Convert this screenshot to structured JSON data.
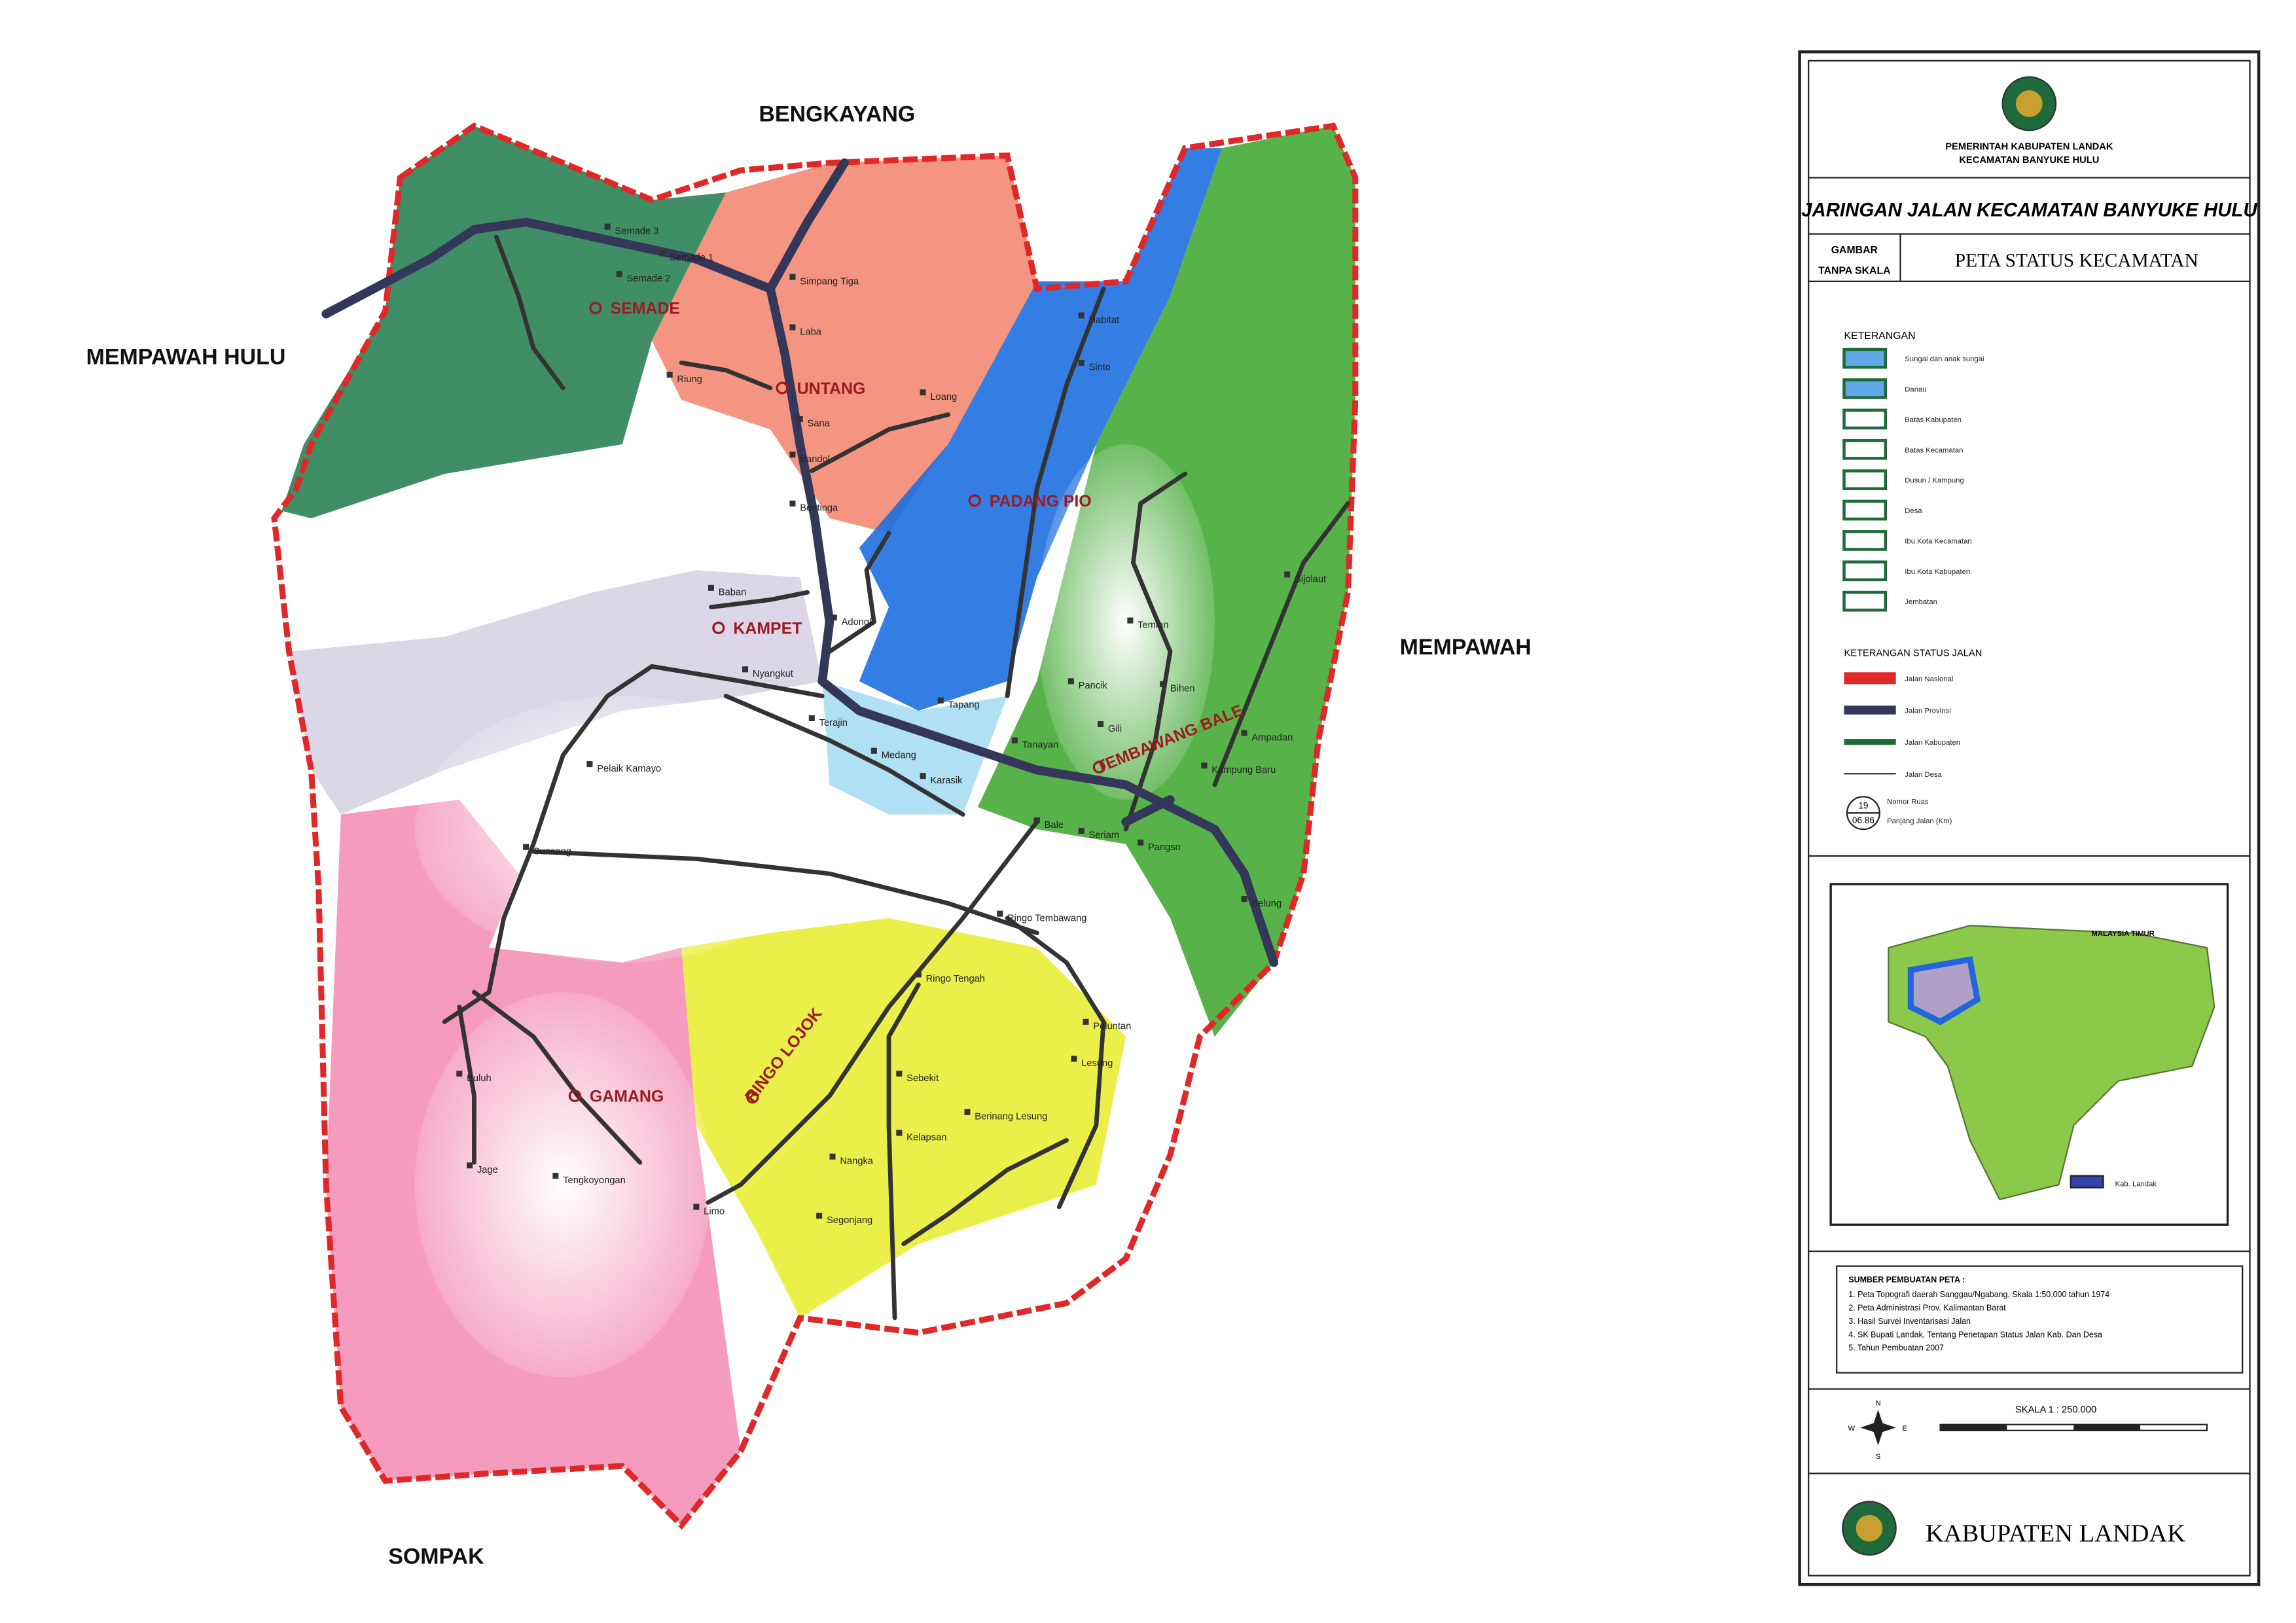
{
  "neighbors": {
    "north": "BENGKAYANG",
    "west": "MEMPAWAH HULU",
    "east": "MEMPAWAH",
    "south": "SOMPAK"
  },
  "desa": [
    "SEMADE",
    "UNTANG",
    "PADANG PIO",
    "KAMPET",
    "TEMBAWANG BALE",
    "RINGO LOJOK",
    "GAMANG"
  ],
  "villages": [
    "Semade 3",
    "Semade 2",
    "Semade 1",
    "Simpang Tiga",
    "Laba",
    "Riung",
    "Loang",
    "Sana",
    "Bandol",
    "Bentinga",
    "Habitat",
    "Sinto",
    "Baban",
    "Adongk",
    "Nyangkut",
    "Terajin",
    "Medang",
    "Tapang",
    "Karasik",
    "Tanayan",
    "Pancik",
    "Temian",
    "Bihen",
    "Gili",
    "Ampadan",
    "Kampung Baru",
    "Sijolaut",
    "Bale",
    "Seriam",
    "Pangso",
    "Belung",
    "Pelaik Kamayo",
    "Sunsang",
    "Ringo Tembawang",
    "Ringo Tengah",
    "Peluntan",
    "Sebekit",
    "Lesung",
    "Berinang Lesung",
    "Kelapsan",
    "Nangka",
    "Segonjang",
    "Limo",
    "Buluh",
    "Jage",
    "Tengkoyongan"
  ],
  "panel": {
    "government": [
      "PEMERINTAH KABUPATEN LANDAK",
      "KECAMATAN BANYUKE HULU"
    ],
    "title": "JARINGAN JALAN KECAMATAN BANYUKE HULU",
    "gambar": "GAMBAR",
    "skala": "TANPA SKALA",
    "map_title": "PETA STATUS KECAMATAN",
    "legend_title": "KETERANGAN",
    "legend": [
      "Sungai dan anak sungai",
      "Danau",
      "Batas Kabupaten",
      "Batas Kecamatan",
      "Dusun / Kampung",
      "Desa",
      "Ibu Kota Kecamatan",
      "Ibu Kota Kabupaten",
      "Jembatan"
    ],
    "road_legend_title": "KETERANGAN STATUS JALAN",
    "roads": [
      "Jalan Nasional",
      "Jalan Provinsi",
      "Jalan Kabupaten",
      "Jalan Desa"
    ],
    "ruas": {
      "number": "19",
      "length": "06.86",
      "labels": [
        "Nomor Ruas",
        "Panjang Jalan (Km)"
      ]
    },
    "inset": {
      "title": "MALAYSIA TIMUR",
      "legend": "Kab. Landak"
    },
    "sources_title": "SUMBER PEMBUATAN PETA :",
    "sources": [
      "1. Peta Topografi daerah Sanggau/Ngabang, Skala 1:50.000 tahun 1974",
      "2. Peta Administrasi Prov. Kalimantan Barat",
      "3. Hasil Survei Inventarisasi Jalan",
      "4. SK Bupati Landak, Tentang Penetapan Status Jalan Kab. Dan Desa",
      "5. Tahun Pembuatan 2007"
    ],
    "scale": "SKALA 1 : 250.000",
    "compass": [
      "N",
      "E",
      "S",
      "W"
    ],
    "footer": "KABUPATEN LANDAK"
  }
}
